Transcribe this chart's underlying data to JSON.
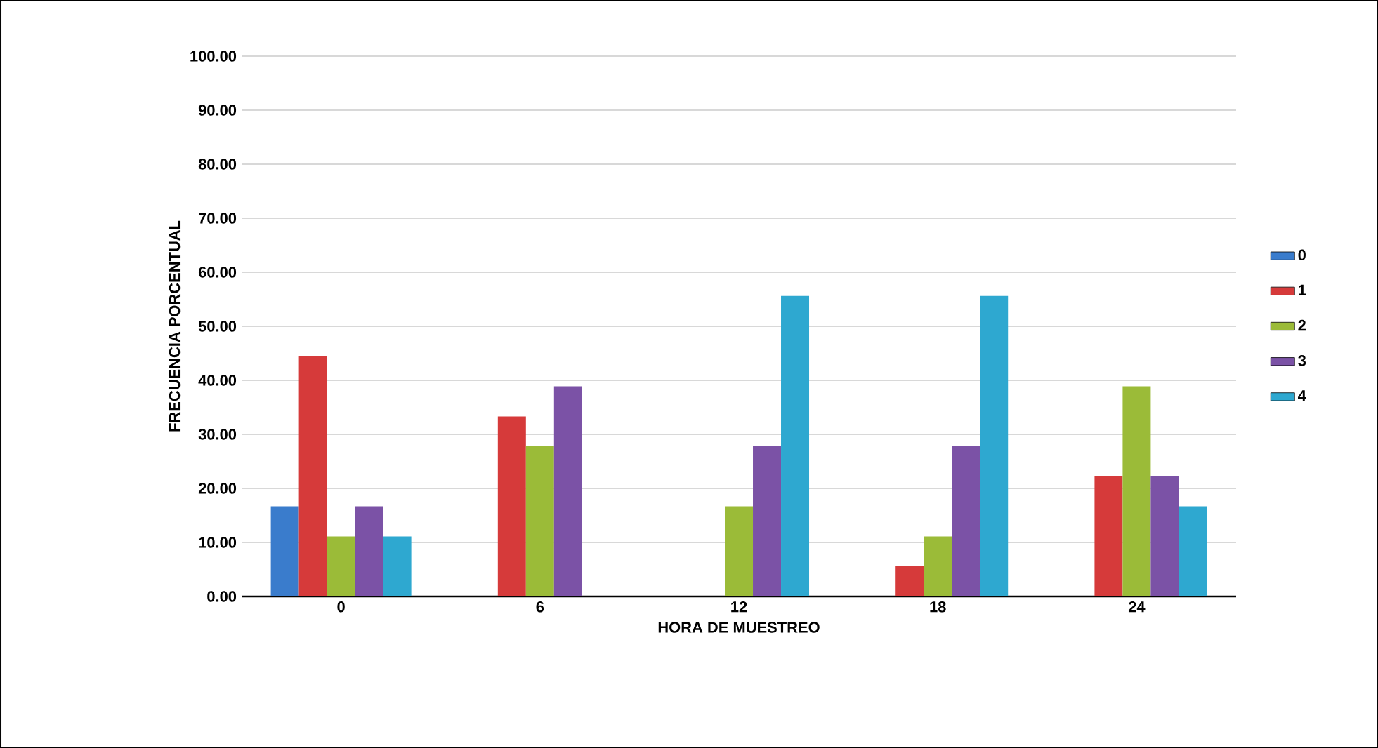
{
  "chart_data": {
    "type": "bar",
    "xlabel": "HORA DE MUESTREO",
    "ylabel": "FRECUENCIA PORCENTUAL",
    "categories": [
      "0",
      "6",
      "12",
      "18",
      "24"
    ],
    "series": [
      {
        "name": "0",
        "color": "#3a7ccc",
        "values": [
          16.7,
          0,
          0,
          0,
          0
        ]
      },
      {
        "name": "1",
        "color": "#d63a3a",
        "values": [
          44.4,
          33.3,
          0,
          5.6,
          22.2
        ]
      },
      {
        "name": "2",
        "color": "#9bbb38",
        "values": [
          11.1,
          27.8,
          16.7,
          11.1,
          38.9
        ]
      },
      {
        "name": "3",
        "color": "#7b52a6",
        "values": [
          16.7,
          38.9,
          27.8,
          27.8,
          22.2
        ]
      },
      {
        "name": "4",
        "color": "#2ea8d0",
        "values": [
          11.1,
          0,
          55.6,
          55.6,
          16.7
        ]
      }
    ],
    "ylim": [
      0,
      100
    ],
    "yticks": [
      {
        "value": 0,
        "label": "0.00"
      },
      {
        "value": 10,
        "label": "10.00"
      },
      {
        "value": 20,
        "label": "20.00"
      },
      {
        "value": 30,
        "label": "30.00"
      },
      {
        "value": 40,
        "label": "40.00"
      },
      {
        "value": 50,
        "label": "50.00"
      },
      {
        "value": 60,
        "label": "60.00"
      },
      {
        "value": 70,
        "label": "70.00"
      },
      {
        "value": 80,
        "label": "80.00"
      },
      {
        "value": 90,
        "label": "90.00"
      },
      {
        "value": 100,
        "label": "100.00"
      }
    ],
    "grid": "y",
    "legend": "right"
  }
}
